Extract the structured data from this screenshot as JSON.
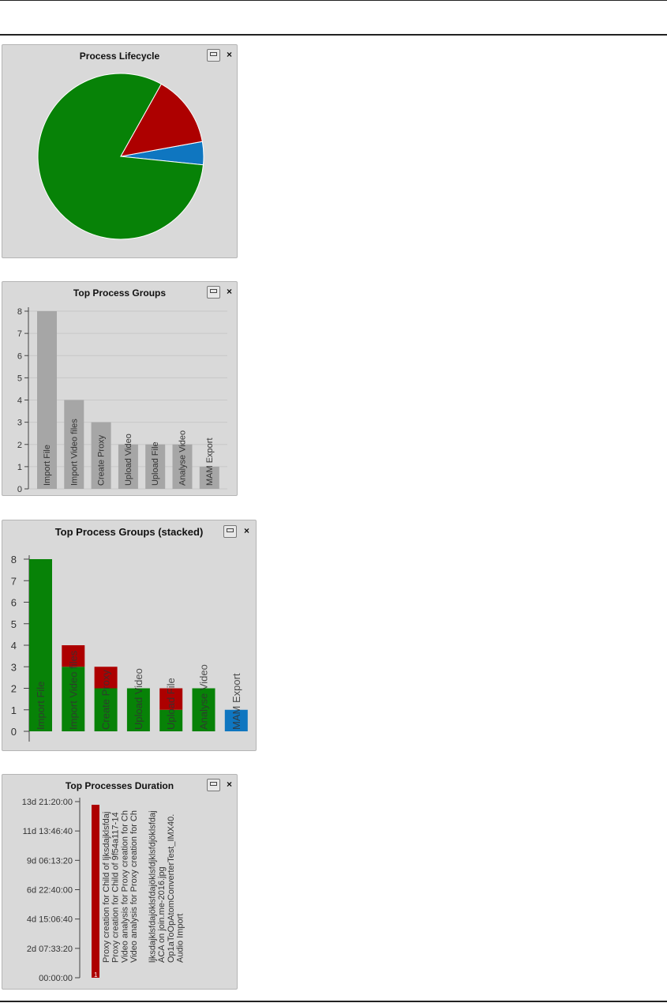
{
  "widgets": {
    "lifecycle": {
      "title": "Process Lifecycle"
    },
    "groups": {
      "title": "Top Process Groups"
    },
    "stacked": {
      "title": "Top Process Groups (stacked)"
    },
    "duration": {
      "title": "Top Processes Duration"
    }
  },
  "icons": {
    "minimize": "minimize-icon",
    "close": "close-icon"
  },
  "close_glyph": "×",
  "colors": {
    "green": "#078207",
    "red": "#ad0000",
    "blue": "#0f76c0",
    "gray": "#a6a6a6"
  },
  "chart_data": [
    {
      "type": "pie",
      "title": "Process Lifecycle",
      "slices": [
        {
          "value": 4.5,
          "color": "#0f76c0"
        },
        {
          "value": 81.5,
          "color": "#078207"
        },
        {
          "value": 14,
          "color": "#ad0000"
        }
      ]
    },
    {
      "type": "bar",
      "title": "Top Process Groups",
      "categories": [
        "Import File",
        "Import Video files",
        "Create Proxy",
        "Upload Video",
        "Upload File",
        "Analyse Video",
        "MAM Export"
      ],
      "values": [
        8,
        4,
        3,
        2,
        2,
        2,
        1
      ],
      "ylim": [
        0,
        8
      ],
      "yticks": [
        "0",
        "1",
        "2",
        "3",
        "4",
        "5",
        "6",
        "7",
        "8"
      ],
      "grid": true
    },
    {
      "type": "bar",
      "title": "Top Process Groups (stacked)",
      "categories": [
        "Import File",
        "Import Video files",
        "Create Proxy",
        "Upload Video",
        "Upload File",
        "Analyse Video",
        "MAM Export"
      ],
      "series": [
        {
          "values": [
            8,
            3,
            2,
            2,
            1,
            2,
            0
          ],
          "color": "#078207"
        },
        {
          "values": [
            0,
            1,
            1,
            0,
            1,
            0,
            0
          ],
          "color": "#ad0000"
        },
        {
          "values": [
            0,
            0,
            0,
            0,
            0,
            0,
            1
          ],
          "color": "#0f76c0"
        }
      ],
      "ylim": [
        0,
        8
      ],
      "yticks": [
        "0",
        "1",
        "2",
        "3",
        "4",
        "5",
        "6",
        "7",
        "8"
      ]
    },
    {
      "type": "bar",
      "title": "Top Processes Duration",
      "categories": [
        "Proxy creation for Child of ljksdajklsfdaj",
        "Proxy creation for Child of 9f54a117-14",
        "Video analysis for Proxy creation for Ch",
        "Video analysis for Proxy creation for Ch",
        "",
        "ljksdajklsfdajöklsfdajöklsfdjklsfdjöklsfdaj",
        "ACA on join.me-2016.jpg",
        "Op1aToOpAtomConverterTest_IMX40.",
        "Audio Import"
      ],
      "values": [
        1200000,
        0,
        0,
        0,
        0,
        0,
        0,
        0,
        0
      ],
      "yticks": [
        "00:00:00",
        "2d 07:33:20",
        "4d 15:06:40",
        "6d 22:40:00",
        "9d 06:13:20",
        "11d 13:46:40",
        "13d 21:20:00"
      ],
      "ylim": [
        0,
        1200000
      ],
      "bar_label": "1"
    }
  ]
}
